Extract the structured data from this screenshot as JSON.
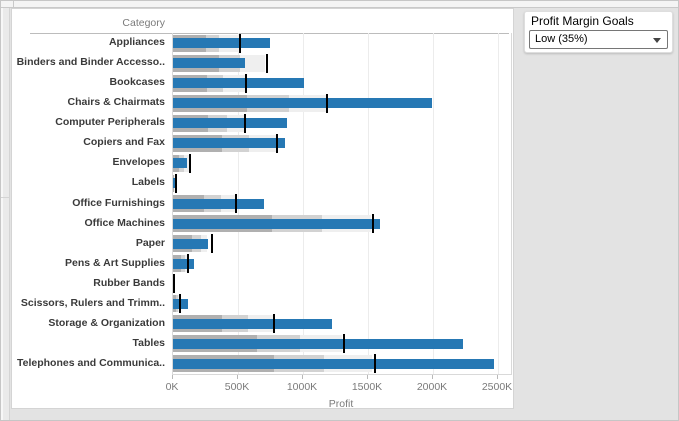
{
  "filter_panel": {
    "title": "Profit Margin Goals",
    "selected": "Low (35%)",
    "dropdown_icon": "chevron-down-icon"
  },
  "chart_data": {
    "type": "bar",
    "subtype": "bullet",
    "category_header": "Category",
    "xlabel": "Profit",
    "x_max_k": 2600,
    "x_ticks": [
      {
        "label": "0K",
        "k": 0
      },
      {
        "label": "500K",
        "k": 500
      },
      {
        "label": "1000K",
        "k": 1000
      },
      {
        "label": "1500K",
        "k": 1500
      },
      {
        "label": "2000K",
        "k": 2000
      },
      {
        "label": "2500K",
        "k": 2500
      }
    ],
    "colors": {
      "bar": "#2678b4",
      "band_dark": "#b0b0b0",
      "band_mid": "#d2d2d2",
      "band_light": "#efefef",
      "reference_line": "#000000",
      "grid": "#ececec",
      "axis_text": "#7b7b7b",
      "label_text": "#3a3a3a"
    },
    "rows": [
      {
        "category": "Appliances",
        "profit_k": 744,
        "goal_k": 518,
        "band60_k": 251,
        "band80_k": 354,
        "band100_k": 518
      },
      {
        "category": "Binders and Binder Accesso..",
        "profit_k": 553,
        "goal_k": 723,
        "band60_k": 354,
        "band80_k": 519,
        "band100_k": 711
      },
      {
        "category": "Bookcases",
        "profit_k": 1009,
        "goal_k": 563,
        "band60_k": 264,
        "band80_k": 384,
        "band100_k": 563
      },
      {
        "category": "Chairs & Chairmats",
        "profit_k": 1992,
        "goal_k": 1183,
        "band60_k": 570,
        "band80_k": 890,
        "band100_k": 1183
      },
      {
        "category": "Computer Peripherals",
        "profit_k": 877,
        "goal_k": 553,
        "band60_k": 272,
        "band80_k": 412,
        "band100_k": 553
      },
      {
        "category": "Copiers and Fax",
        "profit_k": 859,
        "goal_k": 800,
        "band60_k": 379,
        "band80_k": 588,
        "band100_k": 795
      },
      {
        "category": "Envelopes",
        "profit_k": 110,
        "goal_k": 132,
        "band60_k": 47,
        "band80_k": 88,
        "band100_k": 128
      },
      {
        "category": "Labels",
        "profit_k": 13,
        "goal_k": 20,
        "band60_k": 6,
        "band80_k": 10,
        "band100_k": 18
      },
      {
        "category": "Office Furnishings",
        "profit_k": 700,
        "goal_k": 486,
        "band60_k": 239,
        "band80_k": 366,
        "band100_k": 486
      },
      {
        "category": "Office Machines",
        "profit_k": 1591,
        "goal_k": 1540,
        "band60_k": 762,
        "band80_k": 1145,
        "band100_k": 1522
      },
      {
        "category": "Paper",
        "profit_k": 272,
        "goal_k": 297,
        "band60_k": 149,
        "band80_k": 213,
        "band100_k": 264
      },
      {
        "category": "Pens & Art Supplies",
        "profit_k": 162,
        "goal_k": 119,
        "band60_k": 60,
        "band80_k": 90,
        "band100_k": 117
      },
      {
        "category": "Rubber Bands",
        "profit_k": 3,
        "goal_k": 6,
        "band60_k": 2,
        "band80_k": 3,
        "band100_k": 5
      },
      {
        "category": "Scissors, Rulers and Trimm..",
        "profit_k": 115,
        "goal_k": 52,
        "band60_k": 25,
        "band80_k": 38,
        "band100_k": 52
      },
      {
        "category": "Storage & Organization",
        "profit_k": 1220,
        "goal_k": 780,
        "band60_k": 380,
        "band80_k": 578,
        "band100_k": 775
      },
      {
        "category": "Tables",
        "profit_k": 2228,
        "goal_k": 1315,
        "band60_k": 647,
        "band80_k": 979,
        "band100_k": 1303
      },
      {
        "category": "Telephones and Communica..",
        "profit_k": 2467,
        "goal_k": 1556,
        "band60_k": 775,
        "band80_k": 1158,
        "band100_k": 1527
      }
    ]
  }
}
